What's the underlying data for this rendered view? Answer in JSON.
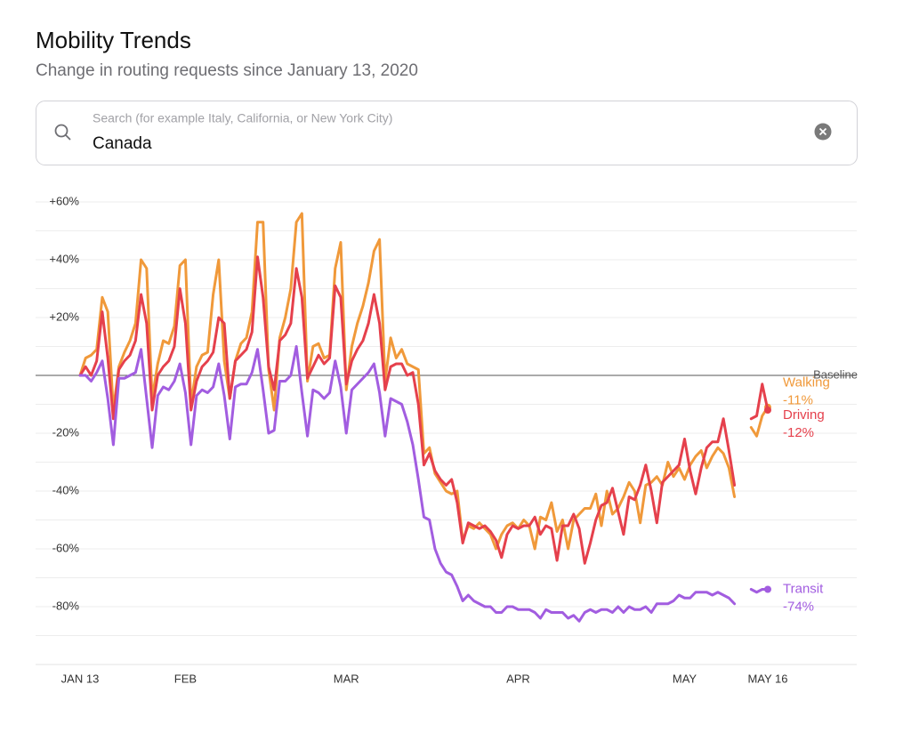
{
  "header": {
    "title": "Mobility Trends",
    "subtitle": "Change in routing requests since January 13, 2020"
  },
  "search": {
    "placeholder": "Search (for example Italy, California, or New York City)",
    "value": "Canada"
  },
  "chart_data": {
    "type": "line",
    "categories": [
      "JAN 13",
      null,
      null,
      null,
      null,
      null,
      null,
      null,
      null,
      null,
      null,
      null,
      null,
      null,
      null,
      null,
      null,
      null,
      null,
      "FEB",
      null,
      null,
      null,
      null,
      null,
      null,
      null,
      null,
      null,
      null,
      null,
      null,
      null,
      null,
      null,
      null,
      null,
      null,
      null,
      null,
      null,
      null,
      null,
      null,
      null,
      null,
      null,
      null,
      "MAR",
      null,
      null,
      null,
      null,
      null,
      null,
      null,
      null,
      null,
      null,
      null,
      null,
      null,
      null,
      null,
      null,
      null,
      null,
      null,
      null,
      null,
      null,
      null,
      null,
      null,
      null,
      null,
      null,
      null,
      null,
      "APR",
      null,
      null,
      null,
      null,
      null,
      null,
      null,
      null,
      null,
      null,
      null,
      null,
      null,
      null,
      null,
      null,
      null,
      null,
      null,
      null,
      null,
      null,
      null,
      null,
      null,
      null,
      null,
      null,
      null,
      "MAY",
      null,
      null,
      null,
      null,
      null,
      null,
      null,
      null,
      null,
      null,
      null,
      null,
      null,
      null,
      "MAY 16"
    ],
    "series": [
      {
        "name": "Walking",
        "color": "#f0993a",
        "end_label": "-11%",
        "values": [
          0,
          6,
          7,
          9,
          27,
          22,
          -12,
          3,
          8,
          12,
          18,
          40,
          37,
          -8,
          4,
          12,
          11,
          17,
          38,
          40,
          -10,
          3,
          7,
          8,
          28,
          40,
          5,
          -8,
          5,
          11,
          13,
          22,
          53,
          53,
          2,
          -12,
          13,
          20,
          30,
          53,
          56,
          -2,
          10,
          11,
          6,
          7,
          37,
          46,
          -5,
          10,
          18,
          24,
          32,
          43,
          47,
          -2,
          13,
          6,
          9,
          4,
          3,
          2,
          -27,
          -25,
          -34,
          -37,
          -40,
          -41,
          -40,
          -57,
          -52,
          -53,
          -51,
          -53,
          -55,
          -60,
          -55,
          -52,
          -51,
          -53,
          -50,
          -52,
          -60,
          -49,
          -50,
          -44,
          -54,
          -50,
          -60,
          -50,
          -48,
          -46,
          -46,
          -41,
          -52,
          -40,
          -48,
          -46,
          -42,
          -37,
          -40,
          -51,
          -38,
          -37,
          -35,
          -38,
          -30,
          -35,
          -32,
          -36,
          -31,
          -28,
          -26,
          -32,
          -28,
          -25,
          -27,
          -32,
          -42,
          null,
          null,
          -18,
          -21,
          -14,
          -11
        ]
      },
      {
        "name": "Driving",
        "color": "#e5404c",
        "end_label": "-12%",
        "values": [
          0,
          3,
          0,
          5,
          22,
          6,
          -15,
          2,
          5,
          7,
          12,
          28,
          18,
          -12,
          0,
          3,
          5,
          10,
          30,
          18,
          -12,
          -2,
          3,
          5,
          8,
          20,
          18,
          -8,
          5,
          7,
          9,
          15,
          41,
          27,
          3,
          -5,
          12,
          14,
          18,
          37,
          27,
          -1,
          3,
          7,
          4,
          6,
          31,
          27,
          -3,
          5,
          9,
          12,
          18,
          28,
          18,
          -5,
          3,
          4,
          4,
          0,
          1,
          -10,
          -31,
          -27,
          -33,
          -36,
          -38,
          -36,
          -44,
          -58,
          -51,
          -52,
          -53,
          -52,
          -54,
          -57,
          -63,
          -55,
          -52,
          -53,
          -52,
          -52,
          -49,
          -55,
          -52,
          -53,
          -64,
          -52,
          -52,
          -48,
          -53,
          -65,
          -58,
          -50,
          -45,
          -44,
          -39,
          -47,
          -55,
          -42,
          -43,
          -38,
          -31,
          -40,
          -51,
          -37,
          -35,
          -33,
          -31,
          -22,
          -33,
          -41,
          -32,
          -25,
          -23,
          -23,
          -15,
          -26,
          -38,
          null,
          null,
          -15,
          -14,
          -3,
          -12
        ]
      },
      {
        "name": "Transit",
        "color": "#a25de0",
        "end_label": "-74%",
        "values": [
          0,
          0,
          -2,
          1,
          5,
          -8,
          -24,
          -1,
          -1,
          0,
          1,
          9,
          -8,
          -25,
          -7,
          -4,
          -5,
          -2,
          4,
          -6,
          -24,
          -7,
          -5,
          -6,
          -4,
          4,
          -7,
          -22,
          -4,
          -3,
          -3,
          1,
          9,
          -5,
          -20,
          -19,
          -2,
          -2,
          0,
          10,
          -6,
          -21,
          -5,
          -6,
          -8,
          -6,
          5,
          -4,
          -20,
          -5,
          -3,
          -1,
          1,
          4,
          -6,
          -21,
          -8,
          -9,
          -10,
          -16,
          -24,
          -36,
          -49,
          -50,
          -60,
          -65,
          -68,
          -69,
          -73,
          -78,
          -76,
          -78,
          -79,
          -80,
          -80,
          -82,
          -82,
          -80,
          -80,
          -81,
          -81,
          -81,
          -82,
          -84,
          -81,
          -82,
          -82,
          -82,
          -84,
          -83,
          -85,
          -82,
          -81,
          -82,
          -81,
          -81,
          -82,
          -80,
          -82,
          -80,
          -81,
          -81,
          -80,
          -82,
          -79,
          -79,
          -79,
          -78,
          -76,
          -77,
          -77,
          -75,
          -75,
          -75,
          -76,
          -75,
          -76,
          -77,
          -79,
          null,
          null,
          -74,
          -75,
          -74,
          -74
        ]
      }
    ],
    "ylim": [
      -100,
      70
    ],
    "yticks": [
      {
        "value": 60,
        "label": "+60%"
      },
      {
        "value": 40,
        "label": "+40%"
      },
      {
        "value": 20,
        "label": "+20%"
      },
      {
        "value": -20,
        "label": "-20%"
      },
      {
        "value": -40,
        "label": "-40%"
      },
      {
        "value": -60,
        "label": "-60%"
      },
      {
        "value": -80,
        "label": "-80%"
      }
    ],
    "minor_yticks": [
      50,
      30,
      10,
      -10,
      -30,
      -50,
      -70,
      -90
    ],
    "baseline": {
      "value": 0,
      "label": "Baseline"
    },
    "grid": true
  }
}
